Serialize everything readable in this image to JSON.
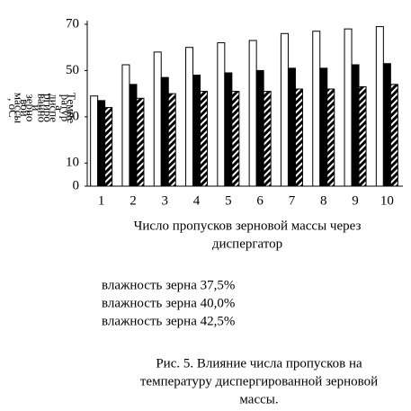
{
  "chart_data": {
    "type": "bar",
    "y_label_lines": [
      "Темпе",
      "ратур",
      "а",
      "диспе",
      "ргиро",
      "ванно",
      "й",
      "зерно",
      "вой",
      "массы",
      ", оС"
    ],
    "x_label_lines": [
      "Число пропусков зерновой массы через",
      "диспергатор"
    ],
    "categories": [
      "1",
      "2",
      "3",
      "4",
      "5",
      "6",
      "7",
      "8",
      "9",
      "10"
    ],
    "series": [
      {
        "name": "влажность зерна 37,5%",
        "color": "#ffffff",
        "values": [
          39,
          52.5,
          58,
          60,
          62,
          63,
          66,
          67,
          68,
          69
        ]
      },
      {
        "name": "влажность зерна 40,0%",
        "color": "#000000",
        "values": [
          37,
          44,
          47,
          48,
          49,
          50,
          51,
          51,
          52.5,
          53
        ]
      },
      {
        "name": "влажность зерна 42,5%",
        "color": "#000000",
        "hatch": true,
        "values": [
          34,
          38,
          40,
          41,
          41,
          41,
          42,
          42,
          43,
          44
        ]
      }
    ],
    "ylim": [
      0,
      70
    ],
    "yticks": [
      0,
      10,
      30,
      50,
      70
    ],
    "caption_lines": [
      "Рис. 5. Влияние числа пропусков на",
      "температуру диспергированной зерновой",
      "массы."
    ]
  }
}
